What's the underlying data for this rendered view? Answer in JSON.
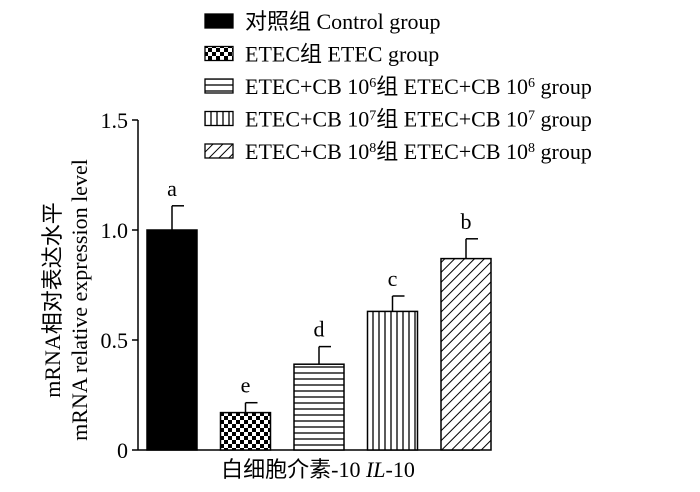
{
  "chart_data": {
    "type": "bar",
    "ylabel_line1": "mRNA相对表达水平",
    "ylabel_line2": "mRNA relative expression level",
    "xlabel_cn": "白细胞介素-10 ",
    "xlabel_gene": "IL",
    "xlabel_suffix": "-10",
    "ylim": [
      0,
      1.5
    ],
    "yticks": [
      {
        "value": 0,
        "label": "0"
      },
      {
        "value": 0.5,
        "label": "0.5"
      },
      {
        "value": 1.0,
        "label": "1.0"
      },
      {
        "value": 1.5,
        "label": "1.5"
      }
    ],
    "series": [
      {
        "name": "对照组 Control group",
        "legend_parts": [
          "对照组 Control group"
        ],
        "value": 1.0,
        "error": 0.11,
        "letter": "a",
        "pattern": "solid",
        "color": "#000000"
      },
      {
        "name": "ETEC组 ETEC group",
        "legend_parts": [
          "ETEC组 ETEC group"
        ],
        "value": 0.17,
        "error": 0.045,
        "letter": "e",
        "pattern": "checker",
        "color": "#000000"
      },
      {
        "name": "ETEC+CB 10^6组 ETEC+CB 10^6 group",
        "legend_parts": [
          "ETEC+CB 10",
          "6",
          "组 ETEC+CB 10",
          "6",
          " group"
        ],
        "value": 0.39,
        "error": 0.08,
        "letter": "d",
        "pattern": "horizontal",
        "color": "#000000"
      },
      {
        "name": "ETEC+CB 10^7组 ETEC+CB 10^7 group",
        "legend_parts": [
          "ETEC+CB 10",
          "7",
          "组 ETEC+CB 10",
          "7",
          " group"
        ],
        "value": 0.63,
        "error": 0.07,
        "letter": "c",
        "pattern": "vertical",
        "color": "#000000"
      },
      {
        "name": "ETEC+CB 10^8组 ETEC+CB 10^8 group",
        "legend_parts": [
          "ETEC+CB 10",
          "8",
          "组 ETEC+CB 10",
          "8",
          " group"
        ],
        "value": 0.87,
        "error": 0.09,
        "letter": "b",
        "pattern": "diagonal",
        "color": "#000000"
      }
    ],
    "grid": false,
    "legend_position": "top-right"
  }
}
